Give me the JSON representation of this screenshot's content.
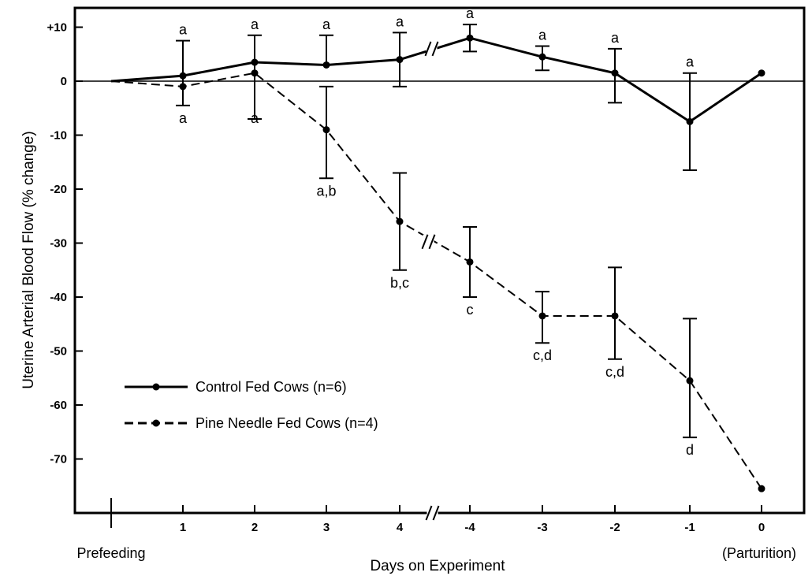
{
  "chart_data": {
    "type": "line",
    "xlabel": "Days on Experiment",
    "ylabel": "Uterine Arterial Blood Flow (% change)",
    "ylim": [
      -80,
      12
    ],
    "y_ticks": [
      {
        "value": 10,
        "label": "+10"
      },
      {
        "value": 0,
        "label": "0"
      },
      {
        "value": -10,
        "label": "-10"
      },
      {
        "value": -20,
        "label": "-20"
      },
      {
        "value": -30,
        "label": "-30"
      },
      {
        "value": -40,
        "label": "-40"
      },
      {
        "value": -50,
        "label": "-50"
      },
      {
        "value": -60,
        "label": "-60"
      },
      {
        "value": -70,
        "label": "-70"
      }
    ],
    "x_labels": [
      {
        "key": "P",
        "label": "Prefeeding"
      },
      {
        "key": "1",
        "label": "1"
      },
      {
        "key": "2",
        "label": "2"
      },
      {
        "key": "3",
        "label": "3"
      },
      {
        "key": "4",
        "label": "4"
      },
      {
        "key": "-4",
        "label": "-4"
      },
      {
        "key": "-3",
        "label": "-3"
      },
      {
        "key": "-2",
        "label": "-2"
      },
      {
        "key": "-1",
        "label": "-1"
      },
      {
        "key": "0",
        "label": "0"
      }
    ],
    "x_annotation": "(Parturition)",
    "zero_line": true,
    "legend_position": "lower-left",
    "series": [
      {
        "name": "Control Fed Cows (n=6)",
        "style": "solid",
        "color": "#000000",
        "points": [
          {
            "x": "P",
            "y": 0
          },
          {
            "x": "1",
            "y": 1,
            "err_hi": 7.5,
            "err_lo": -4.5,
            "sig": "a",
            "sig_pos": "above"
          },
          {
            "x": "2",
            "y": 3.5,
            "err_hi": 8.5,
            "err_lo": -7.0,
            "sig": "a",
            "sig_pos": "above"
          },
          {
            "x": "3",
            "y": 3,
            "err_hi": 8.5,
            "sig": "a",
            "sig_pos": "above"
          },
          {
            "x": "4",
            "y": 4,
            "err_hi": 9,
            "err_lo": -1,
            "sig": "a",
            "sig_pos": "above"
          },
          {
            "x": "-4",
            "y": 8,
            "err_hi": 10.5,
            "err_lo": 5.5,
            "sig": "a",
            "sig_pos": "above"
          },
          {
            "x": "-3",
            "y": 4.5,
            "err_hi": 6.5,
            "err_lo": 2,
            "sig": "a",
            "sig_pos": "above"
          },
          {
            "x": "-2",
            "y": 1.5,
            "err_hi": 6,
            "err_lo": -4,
            "sig": "a",
            "sig_pos": "above"
          },
          {
            "x": "-1",
            "y": -7.5,
            "err_hi": 1.5,
            "err_lo": -16.5,
            "sig": "a",
            "sig_pos": "above"
          },
          {
            "x": "0",
            "y": 1.5
          }
        ]
      },
      {
        "name": "Pine Needle Fed Cows (n=4)",
        "style": "dashed",
        "color": "#000000",
        "points": [
          {
            "x": "P",
            "y": 0
          },
          {
            "x": "1",
            "y": -1,
            "sig": "a",
            "sig_pos": "below"
          },
          {
            "x": "2",
            "y": 1.5,
            "sig": "a",
            "sig_pos": "below"
          },
          {
            "x": "3",
            "y": -9,
            "err_hi": -1,
            "err_lo": -18,
            "sig": "a,b",
            "sig_pos": "below"
          },
          {
            "x": "4",
            "y": -26,
            "err_hi": -17,
            "err_lo": -35,
            "sig": "b,c",
            "sig_pos": "below"
          },
          {
            "x": "-4",
            "y": -33.5,
            "err_hi": -27,
            "err_lo": -40,
            "sig": "c",
            "sig_pos": "below"
          },
          {
            "x": "-3",
            "y": -43.5,
            "err_hi": -39,
            "err_lo": -48.5,
            "sig": "c,d",
            "sig_pos": "below"
          },
          {
            "x": "-2",
            "y": -43.5,
            "err_hi": -34.5,
            "err_lo": -51.5,
            "sig": "c,d",
            "sig_pos": "below"
          },
          {
            "x": "-1",
            "y": -55.5,
            "err_hi": -44,
            "err_lo": -66,
            "sig": "d",
            "sig_pos": "below"
          },
          {
            "x": "0",
            "y": -75.5
          }
        ]
      }
    ]
  }
}
